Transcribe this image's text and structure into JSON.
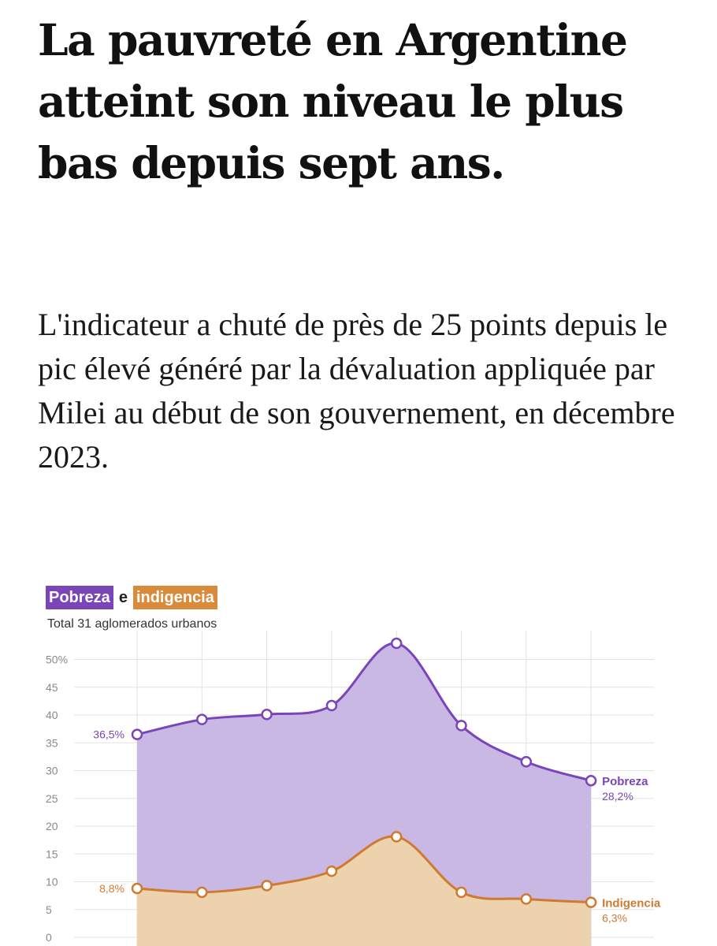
{
  "headline": "La pauvreté en Argentine atteint son niveau le plus bas depuis sept ans.",
  "lede": "L'indicateur a chuté de près de 25 points depuis le pic élevé généré par la dévaluation appliquée par Milei au début de son gouvernement, en décembre 2023.",
  "colors": {
    "pobreza_line": "#7a45b8",
    "pobreza_fill": "#c9b8e4",
    "indigencia_line": "#d07a30",
    "indigencia_fill": "#ecd3ad",
    "grid": "#e2e2e2",
    "tick_text": "#8a8a8a"
  },
  "chart_data": {
    "type": "area",
    "title": {
      "part1": "Pobreza",
      "connector": "e",
      "part2": "indigencia"
    },
    "subtitle": "Total 31 aglomerados urbanos",
    "ylim": [
      0,
      55
    ],
    "y_ticks": [
      0,
      5,
      10,
      15,
      20,
      25,
      30,
      35,
      40,
      45,
      50
    ],
    "y_tick_labels": [
      "0",
      "5",
      "10",
      "15",
      "20",
      "25",
      "30",
      "35",
      "40",
      "45",
      "50%"
    ],
    "grid": true,
    "series": [
      {
        "name": "Pobreza",
        "values": [
          36.5,
          39.2,
          40.1,
          41.7,
          52.9,
          38.1,
          31.6,
          28.2
        ],
        "start_label": "36,5%",
        "end_label": "28,2%"
      },
      {
        "name": "Indigencia",
        "values": [
          8.8,
          8.1,
          9.3,
          11.9,
          18.1,
          8.1,
          6.9,
          6.3
        ],
        "start_label": "8,8%",
        "end_label": "6,3%"
      }
    ]
  }
}
